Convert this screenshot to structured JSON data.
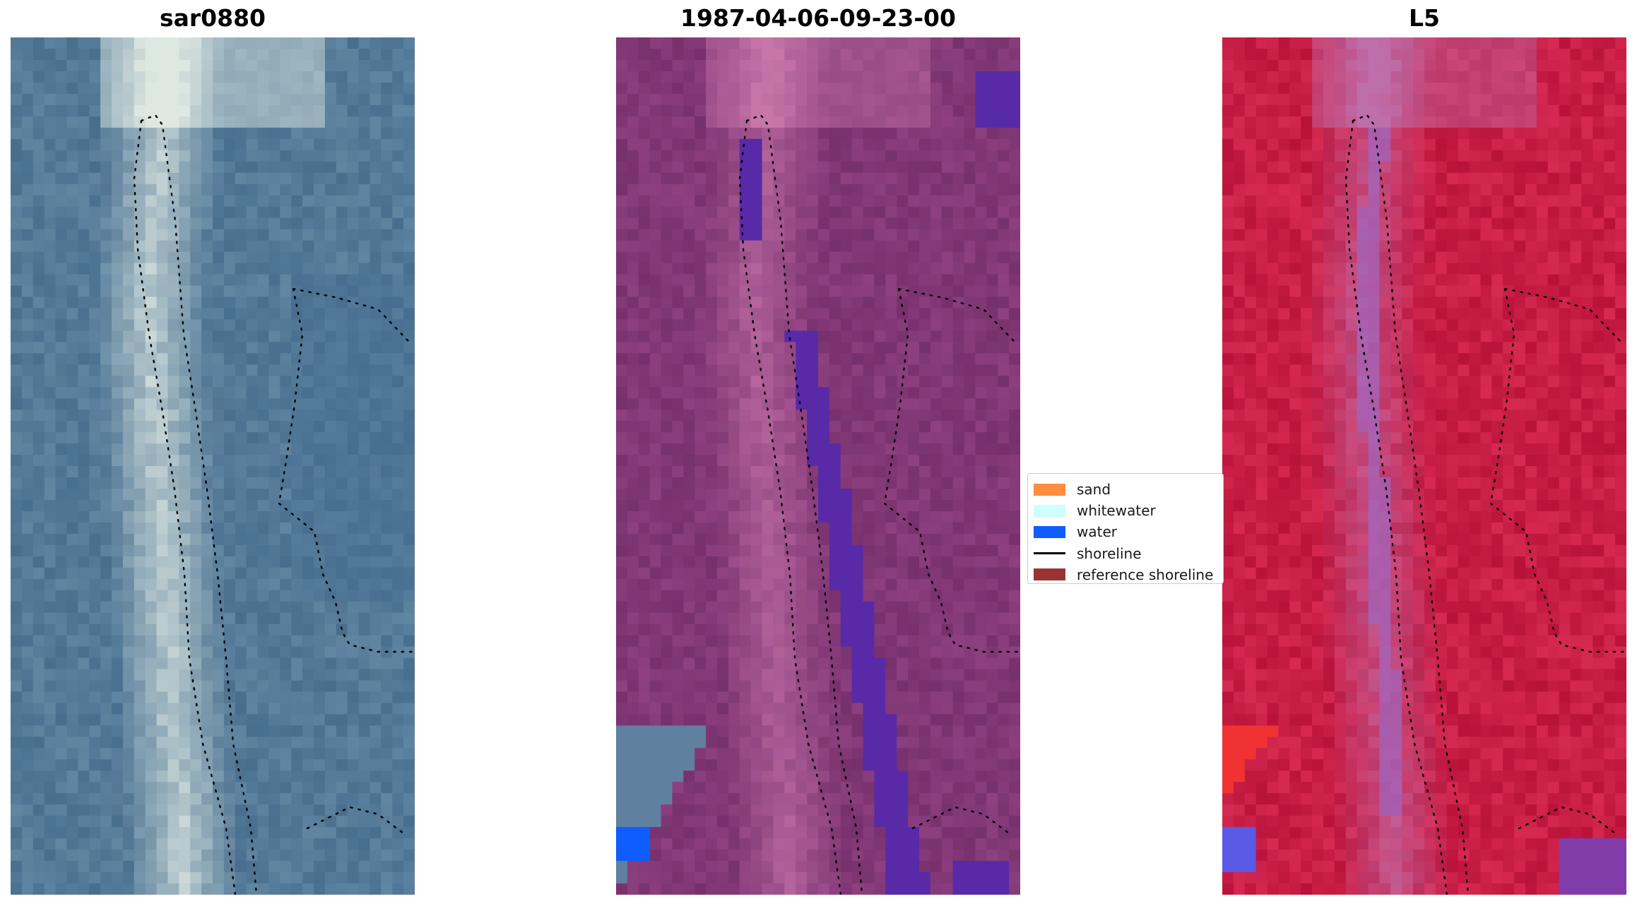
{
  "panels": [
    {
      "title": "sar0880",
      "style": "rgb"
    },
    {
      "title": "1987-04-06-09-23-00",
      "style": "classified"
    },
    {
      "title": "L5",
      "style": "index"
    }
  ],
  "legend": {
    "items": [
      {
        "label": "sand",
        "kind": "patch",
        "color": "#ff8c3f"
      },
      {
        "label": "whitewater",
        "kind": "patch",
        "color": "#ccffff"
      },
      {
        "label": "water",
        "kind": "patch",
        "color": "#0f5cff"
      },
      {
        "label": "shoreline",
        "kind": "line",
        "color": "#000000"
      },
      {
        "label": "reference shoreline",
        "kind": "patch",
        "color": "#993333"
      }
    ]
  }
}
